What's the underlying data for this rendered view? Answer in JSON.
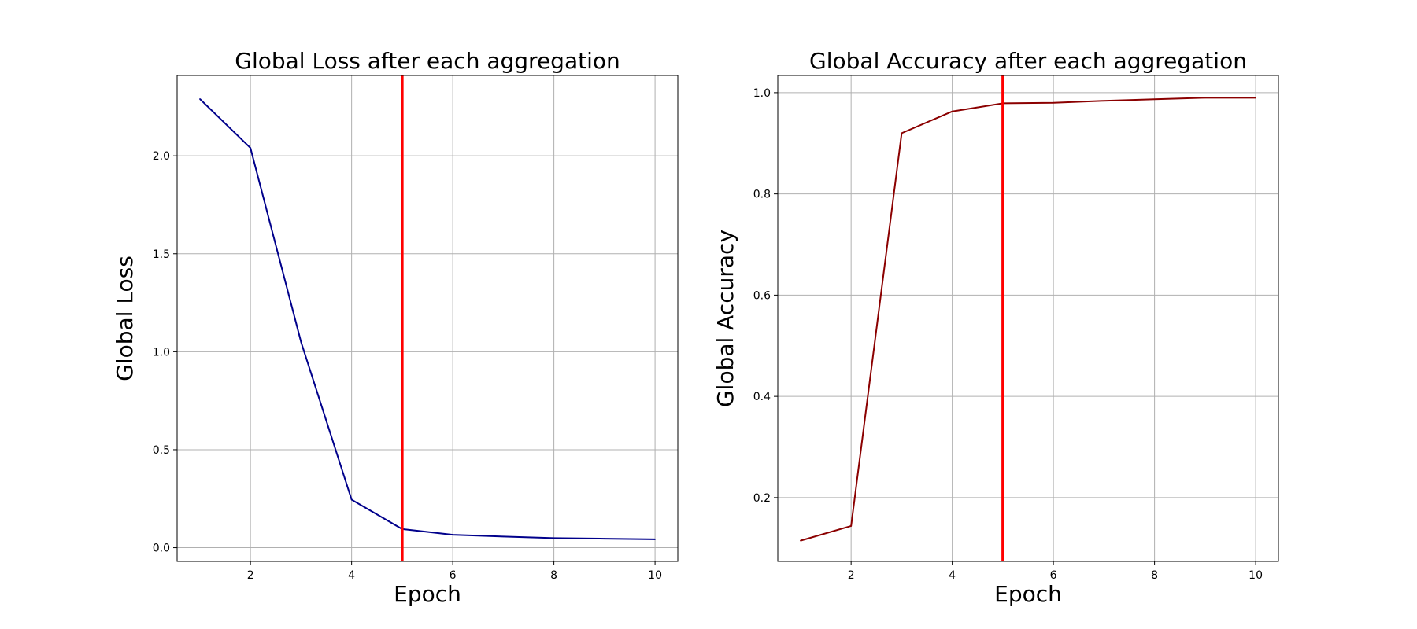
{
  "chart_data": [
    {
      "type": "line",
      "title": "Global Loss after each aggregation",
      "xlabel": "Epoch",
      "ylabel": "Global Loss",
      "x": [
        1,
        2,
        3,
        4,
        5,
        6,
        7,
        8,
        9,
        10
      ],
      "series": [
        {
          "values": [
            2.29,
            2.04,
            1.05,
            0.245,
            0.095,
            0.066,
            0.057,
            0.049,
            0.046,
            0.043
          ],
          "color": "#00008b"
        }
      ],
      "vline": {
        "x": 5,
        "color": "#ff0000"
      },
      "xlim": [
        0.55,
        10.45
      ],
      "ylim": [
        -0.07,
        2.41
      ],
      "xticks": [
        2,
        4,
        6,
        8,
        10
      ],
      "xtick_labels": [
        "2",
        "4",
        "6",
        "8",
        "10"
      ],
      "yticks": [
        0.0,
        0.5,
        1.0,
        1.5,
        2.0
      ],
      "ytick_labels": [
        "0.0",
        "0.5",
        "1.0",
        "1.5",
        "2.0"
      ],
      "grid": true
    },
    {
      "type": "line",
      "title": "Global Accuracy after each aggregation",
      "xlabel": "Epoch",
      "ylabel": "Global Accuracy",
      "x": [
        1,
        2,
        3,
        4,
        5,
        6,
        7,
        8,
        9,
        10
      ],
      "series": [
        {
          "values": [
            0.115,
            0.144,
            0.92,
            0.963,
            0.979,
            0.98,
            0.984,
            0.987,
            0.99,
            0.99
          ],
          "color": "#8b0000"
        }
      ],
      "vline": {
        "x": 5,
        "color": "#ff0000"
      },
      "xlim": [
        0.55,
        10.45
      ],
      "ylim": [
        0.074,
        1.034
      ],
      "xticks": [
        2,
        4,
        6,
        8,
        10
      ],
      "xtick_labels": [
        "2",
        "4",
        "6",
        "8",
        "10"
      ],
      "yticks": [
        0.2,
        0.4,
        0.6,
        0.8,
        1.0
      ],
      "ytick_labels": [
        "0.2",
        "0.4",
        "0.6",
        "0.8",
        "1.0"
      ],
      "grid": true
    }
  ]
}
